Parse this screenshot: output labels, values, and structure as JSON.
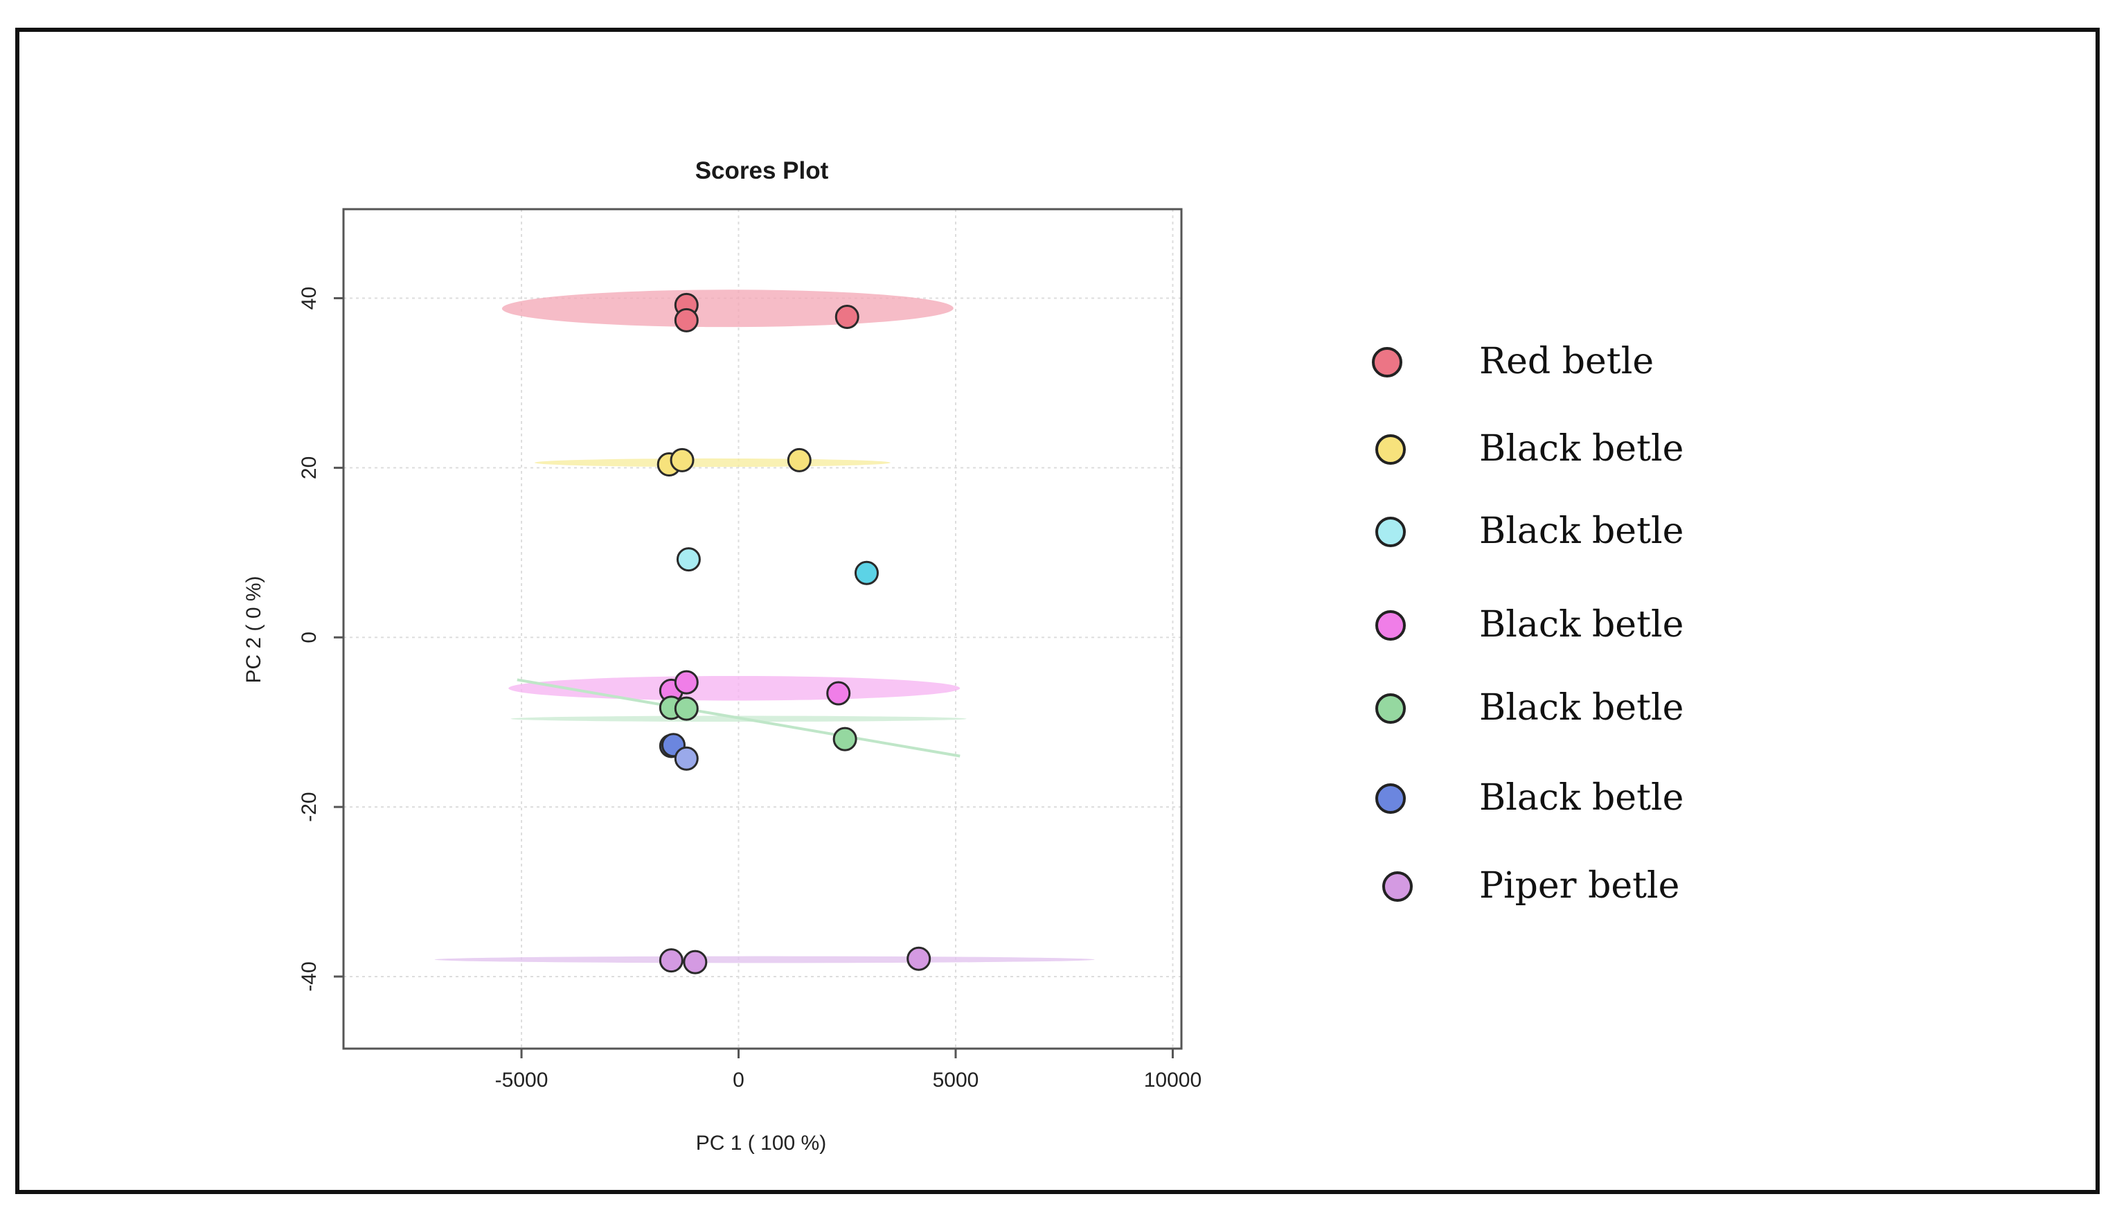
{
  "chart_data": {
    "type": "scatter",
    "title": "Scores Plot",
    "xlabel": "PC 1 ( 100 %)",
    "ylabel": "PC 2 ( 0 %)",
    "xlim": [
      -9100,
      10200
    ],
    "ylim": [
      -48.5,
      50.5
    ],
    "xticks": [
      -5000,
      0,
      5000,
      10000
    ],
    "yticks": [
      -40,
      -20,
      0,
      20,
      40
    ],
    "xtick_labels": [
      "-5000",
      "0",
      "5000",
      "10000"
    ],
    "ytick_labels": [
      "-40",
      "-20",
      "0",
      "20",
      "40"
    ],
    "grid": true,
    "legend_position": "right",
    "series": [
      {
        "name": "Red betle",
        "fill": "#ec7585",
        "ellipse_fill": "#f3a6b4",
        "ellipse": {
          "cx": -250,
          "cy": 38.8,
          "rx": 5200,
          "ry": 2.2,
          "angle": -0.05
        },
        "points": [
          [
            -1200,
            39.2
          ],
          [
            -1200,
            37.4
          ],
          [
            2500,
            37.8
          ]
        ]
      },
      {
        "name": "Black betle",
        "fill": "#f7e27c",
        "ellipse_fill": "#f7ec9a",
        "ellipse": {
          "cx": -600,
          "cy": 20.6,
          "rx": 4100,
          "ry": 0.5,
          "angle": 0
        },
        "points": [
          [
            -1600,
            20.4
          ],
          [
            -1300,
            20.9
          ],
          [
            1400,
            20.9
          ]
        ]
      },
      {
        "name": "Black betle",
        "fill": "#a8ecf2",
        "points": [
          [
            -1150,
            9.2
          ]
        ]
      },
      {
        "name": "Black betle",
        "fill": "#5cd3e6",
        "points": [
          [
            2950,
            7.6
          ]
        ]
      },
      {
        "name": "Black betle",
        "fill": "#f07ee8",
        "ellipse_fill": "#f6b2f2",
        "ellipse": {
          "cx": -100,
          "cy": -6.0,
          "rx": 5200,
          "ry": 1.45,
          "angle": 0
        },
        "points": [
          [
            -1550,
            -6.3
          ],
          [
            -1200,
            -5.3
          ],
          [
            2300,
            -6.6
          ]
        ]
      },
      {
        "name": "Black betle",
        "fill": "#95d8a0",
        "ellipse_fill": "#c8ead0",
        "ellipse": {
          "cx": 0,
          "cy": -9.6,
          "rx": 5250,
          "ry": 0.35,
          "angle": 0
        },
        "points": [
          [
            -1550,
            -8.3
          ],
          [
            -1200,
            -8.4
          ],
          [
            2450,
            -12.0
          ]
        ]
      },
      {
        "name": "Black betle",
        "fill": "#6b86df",
        "points": [
          [
            -1550,
            -12.8
          ],
          [
            -1500,
            -12.7
          ]
        ]
      },
      {
        "name": "Black betle",
        "fill": "#9aa9ea",
        "points": [
          [
            -1200,
            -14.3
          ]
        ]
      },
      {
        "name": "Piper betle",
        "fill": "#d49ae2",
        "ellipse_fill": "#e0c0ee",
        "ellipse": {
          "cx": 600,
          "cy": -38.0,
          "rx": 7600,
          "ry": 0.4,
          "angle": 0
        },
        "points": [
          [
            -1550,
            -38.1
          ],
          [
            -1000,
            -38.3
          ],
          [
            4150,
            -37.9
          ]
        ]
      }
    ],
    "legend": [
      {
        "label": "Red betle",
        "fill": "#ec7585"
      },
      {
        "label": "Black betle",
        "fill": "#f7e27c"
      },
      {
        "label": "Black betle",
        "fill": "#a8ecf2"
      },
      {
        "label": "Black betle",
        "fill": "#f07ee8"
      },
      {
        "label": "Black betle",
        "fill": "#95d8a0"
      },
      {
        "label": "Black betle",
        "fill": "#6b86df"
      },
      {
        "label": "Piper betle",
        "fill": "#d49ae2"
      }
    ]
  }
}
